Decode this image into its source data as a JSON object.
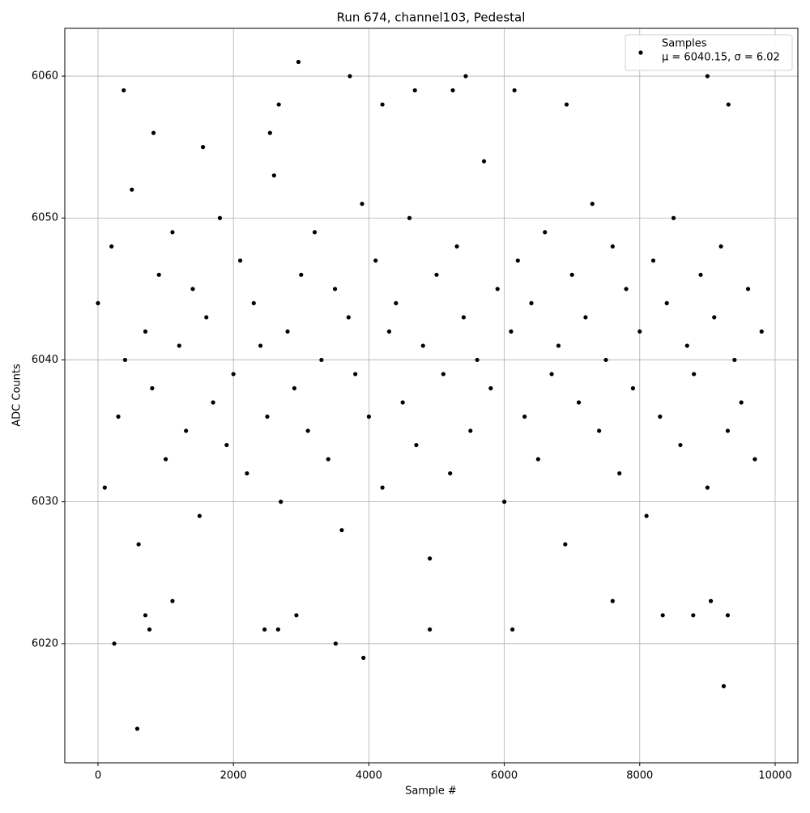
{
  "chart_data": {
    "type": "scatter",
    "title": "Run 674, channel103, Pedestal",
    "x_label": "Sample #",
    "y_label": "ADC Counts",
    "xlim": [
      -490,
      10335
    ],
    "ylim": [
      6011.6,
      6063.37
    ],
    "xticks": [
      0,
      2000,
      4000,
      6000,
      8000,
      10000
    ],
    "yticks": [
      6020,
      6030,
      6040,
      6050,
      6060
    ],
    "grid": true,
    "legend_position": "upper right",
    "series": [
      {
        "name": "Samples",
        "label": "μ = 6040.15, σ = 6.02",
        "color": "#000000",
        "x": [
          0,
          100,
          200,
          300,
          400,
          500,
          600,
          700,
          800,
          900,
          1000,
          1100,
          1200,
          1300,
          1400,
          1500,
          1600,
          1700,
          1800,
          1900,
          2000,
          2100,
          2200,
          2300,
          2400,
          2500,
          2600,
          2700,
          2800,
          2900,
          3000,
          3100,
          3200,
          3300,
          3400,
          3500,
          3600,
          3700,
          3800,
          3900,
          4000,
          4100,
          4200,
          4300,
          4400,
          4500,
          4600,
          4700,
          4800,
          4900,
          5000,
          5100,
          5200,
          5300,
          5400,
          5500,
          5600,
          5700,
          5800,
          5900,
          6000,
          6100,
          6200,
          6300,
          6400,
          6500,
          6600,
          6700,
          6800,
          6900,
          7000,
          7100,
          7200,
          7300,
          7400,
          7500,
          7600,
          7700,
          7800,
          7900,
          8000,
          8100,
          8200,
          8300,
          8400,
          8500,
          8600,
          8700,
          8800,
          8900,
          9000,
          9100,
          9200,
          9300,
          9400,
          9500,
          9600,
          9700,
          9800,
          240,
          580,
          380,
          2960,
          3720,
          5430,
          9000,
          9240,
          3510,
          3920,
          6120,
          4900,
          2460,
          2660,
          760,
          700,
          2930,
          8340,
          8790,
          9300,
          2540,
          2670,
          4200,
          4680,
          6150,
          6920,
          9310,
          5240,
          1550,
          820,
          1100,
          7600,
          9050
        ],
        "values": [
          6044,
          6031,
          6048,
          6036,
          6040,
          6052,
          6027,
          6042,
          6038,
          6046,
          6033,
          6049,
          6041,
          6035,
          6045,
          6029,
          6043,
          6037,
          6050,
          6034,
          6039,
          6047,
          6032,
          6044,
          6041,
          6036,
          6053,
          6030,
          6042,
          6038,
          6046,
          6035,
          6049,
          6040,
          6033,
          6045,
          6028,
          6043,
          6039,
          6051,
          6036,
          6047,
          6031,
          6042,
          6044,
          6037,
          6050,
          6034,
          6041,
          6026,
          6046,
          6039,
          6032,
          6048,
          6043,
          6035,
          6040,
          6054,
          6038,
          6045,
          6030,
          6042,
          6047,
          6036,
          6044,
          6033,
          6049,
          6039,
          6041,
          6027,
          6046,
          6037,
          6043,
          6051,
          6035,
          6040,
          6048,
          6032,
          6045,
          6038,
          6042,
          6029,
          6047,
          6036,
          6044,
          6050,
          6034,
          6041,
          6039,
          6046,
          6031,
          6043,
          6048,
          6035,
          6040,
          6037,
          6045,
          6033,
          6042,
          6020,
          6014,
          6059,
          6061,
          6060,
          6060,
          6060,
          6017,
          6020,
          6019,
          6021,
          6021,
          6021,
          6021,
          6021,
          6022,
          6022,
          6022,
          6022,
          6022,
          6056,
          6058,
          6058,
          6059,
          6059,
          6058,
          6058,
          6059,
          6055,
          6056,
          6023,
          6023,
          6023
        ]
      }
    ]
  }
}
